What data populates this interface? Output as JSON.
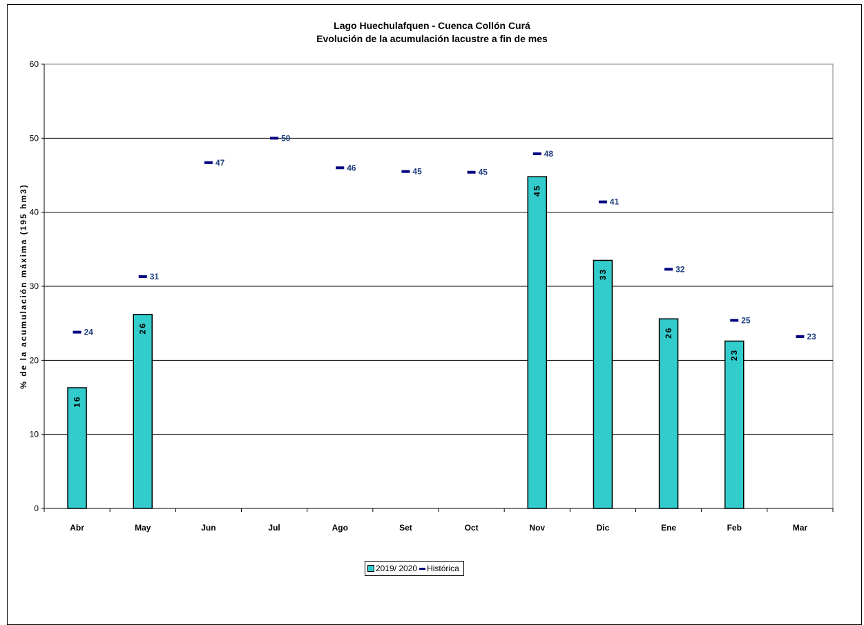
{
  "chart_data": {
    "type": "bar",
    "title": "Lago Huechulafquen - Cuenca Collón Curá",
    "subtitle": "Evolución de la acumulación lacustre a fin de mes",
    "ylabel": "% de la acumulación máxima (195 hm3)",
    "xlabel": "",
    "ylim": [
      0,
      60
    ],
    "yticks": [
      0,
      10,
      20,
      30,
      40,
      50,
      60
    ],
    "categories": [
      "Abr",
      "May",
      "Jun",
      "Jul",
      "Ago",
      "Set",
      "Oct",
      "Nov",
      "Dic",
      "Ene",
      "Feb",
      "Mar"
    ],
    "series": [
      {
        "name": "2019/ 2020",
        "kind": "bar",
        "color": "#33cccc",
        "values": [
          16.3,
          26.2,
          null,
          null,
          null,
          null,
          null,
          44.8,
          33.5,
          25.6,
          22.6,
          null
        ],
        "labels": [
          "16",
          "26",
          null,
          null,
          null,
          null,
          null,
          "45",
          "33",
          "26",
          "23",
          null
        ]
      },
      {
        "name": "Histórica",
        "kind": "marker",
        "color": "#000080",
        "values": [
          23.8,
          31.3,
          46.7,
          50.0,
          46.0,
          45.5,
          45.4,
          47.9,
          41.4,
          32.3,
          25.4,
          23.2
        ],
        "labels": [
          "24",
          "31",
          "47",
          "50",
          "46",
          "45",
          "45",
          "48",
          "41",
          "32",
          "25",
          "23"
        ]
      }
    ],
    "grid": true,
    "legend_position": "bottom"
  }
}
